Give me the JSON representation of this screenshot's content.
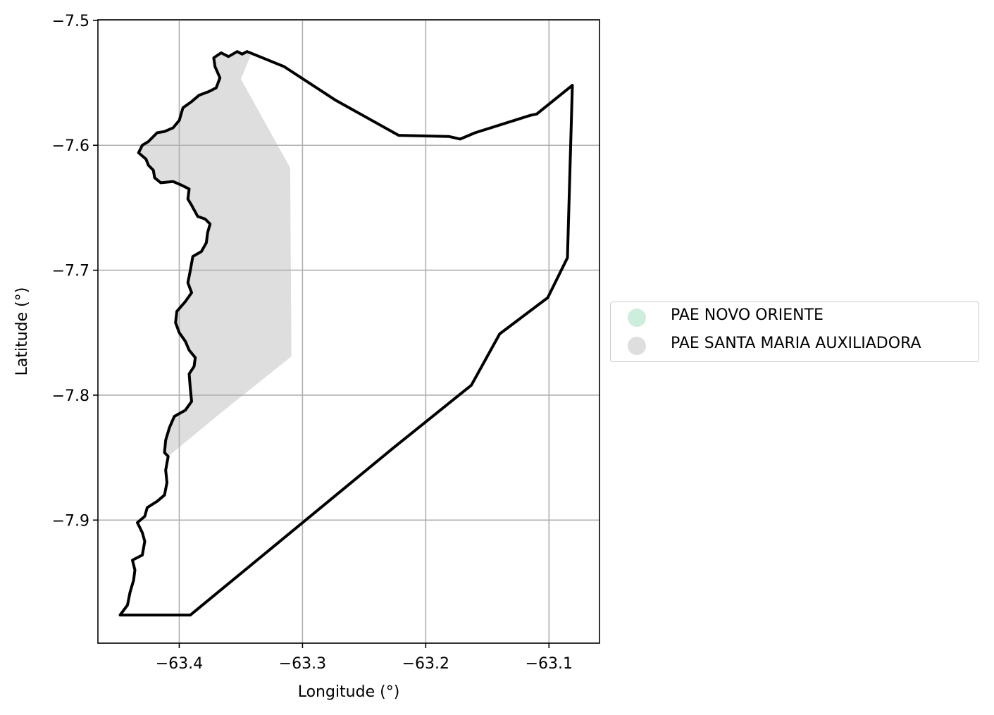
{
  "chart_data": {
    "type": "map",
    "xlabel": "Longitude (°)",
    "ylabel": "Latitude (°)",
    "xlim": [
      -63.466,
      -63.059
    ],
    "ylim": [
      -7.9985,
      -7.4995
    ],
    "x_ticks": [
      -63.4,
      -63.3,
      -63.2,
      -63.1
    ],
    "x_tick_labels": [
      "−63.4",
      "−63.3",
      "−63.2",
      "−63.1"
    ],
    "y_ticks": [
      -7.5,
      -7.6,
      -7.7,
      -7.8,
      -7.9
    ],
    "y_tick_labels": [
      "−7.5",
      "−7.6",
      "−7.7",
      "−7.8",
      "−7.9"
    ],
    "grid": true,
    "legend_position": "center-right outside",
    "legend": [
      {
        "label": "PAE NOVO ORIENTE",
        "color": "#cdeedd"
      },
      {
        "label": "PAE SANTA MARIA AUXILIADORA",
        "color": "#dedede"
      }
    ],
    "filled_region": {
      "name": "PAE SANTA MARIA AUXILIADORA",
      "color": "#dedede",
      "coords": [
        [
          -63.345,
          -7.525
        ],
        [
          -63.349,
          -7.527
        ],
        [
          -63.353,
          -7.525
        ],
        [
          -63.36,
          -7.529
        ],
        [
          -63.366,
          -7.526
        ],
        [
          -63.372,
          -7.53
        ],
        [
          -63.371,
          -7.537
        ],
        [
          -63.367,
          -7.546
        ],
        [
          -63.37,
          -7.554
        ],
        [
          -63.376,
          -7.557
        ],
        [
          -63.384,
          -7.56
        ],
        [
          -63.39,
          -7.565
        ],
        [
          -63.397,
          -7.57
        ],
        [
          -63.4,
          -7.58
        ],
        [
          -63.405,
          -7.586
        ],
        [
          -63.412,
          -7.589
        ],
        [
          -63.418,
          -7.59
        ],
        [
          -63.425,
          -7.597
        ],
        [
          -63.43,
          -7.6
        ],
        [
          -63.433,
          -7.606
        ],
        [
          -63.427,
          -7.611
        ],
        [
          -63.425,
          -7.616
        ],
        [
          -63.421,
          -7.62
        ],
        [
          -63.42,
          -7.626
        ],
        [
          -63.415,
          -7.63
        ],
        [
          -63.405,
          -7.629
        ],
        [
          -63.398,
          -7.632
        ],
        [
          -63.392,
          -7.635
        ],
        [
          -63.393,
          -7.643
        ],
        [
          -63.39,
          -7.648
        ],
        [
          -63.385,
          -7.657
        ],
        [
          -63.379,
          -7.659
        ],
        [
          -63.375,
          -7.663
        ],
        [
          -63.377,
          -7.67
        ],
        [
          -63.378,
          -7.678
        ],
        [
          -63.382,
          -7.685
        ],
        [
          -63.389,
          -7.689
        ],
        [
          -63.391,
          -7.7
        ],
        [
          -63.393,
          -7.71
        ],
        [
          -63.39,
          -7.718
        ],
        [
          -63.395,
          -7.725
        ],
        [
          -63.402,
          -7.733
        ],
        [
          -63.403,
          -7.742
        ],
        [
          -63.4,
          -7.75
        ],
        [
          -63.395,
          -7.757
        ],
        [
          -63.392,
          -7.764
        ],
        [
          -63.387,
          -7.77
        ],
        [
          -63.388,
          -7.777
        ],
        [
          -63.392,
          -7.783
        ],
        [
          -63.391,
          -7.795
        ],
        [
          -63.39,
          -7.805
        ],
        [
          -63.395,
          -7.812
        ],
        [
          -63.404,
          -7.817
        ],
        [
          -63.408,
          -7.826
        ],
        [
          -63.411,
          -7.836
        ],
        [
          -63.412,
          -7.846
        ],
        [
          -63.409,
          -7.849
        ],
        [
          -63.366,
          -7.814
        ],
        [
          -63.309,
          -7.769
        ],
        [
          -63.31,
          -7.618
        ],
        [
          -63.35,
          -7.547
        ],
        [
          -63.342,
          -7.528
        ]
      ]
    },
    "outline": {
      "color": "#000000",
      "coords": [
        [
          -63.345,
          -7.525
        ],
        [
          -63.315,
          -7.537
        ],
        [
          -63.273,
          -7.564
        ],
        [
          -63.222,
          -7.592
        ],
        [
          -63.181,
          -7.593
        ],
        [
          -63.172,
          -7.595
        ],
        [
          -63.16,
          -7.59
        ],
        [
          -63.115,
          -7.576
        ],
        [
          -63.11,
          -7.575
        ],
        [
          -63.081,
          -7.552
        ],
        [
          -63.085,
          -7.69
        ],
        [
          -63.101,
          -7.722
        ],
        [
          -63.14,
          -7.751
        ],
        [
          -63.163,
          -7.792
        ],
        [
          -63.226,
          -7.842
        ],
        [
          -63.391,
          -7.976
        ],
        [
          -63.448,
          -7.976
        ],
        [
          -63.442,
          -7.968
        ],
        [
          -63.44,
          -7.958
        ],
        [
          -63.437,
          -7.948
        ],
        [
          -63.436,
          -7.94
        ],
        [
          -63.438,
          -7.932
        ],
        [
          -63.43,
          -7.928
        ],
        [
          -63.428,
          -7.917
        ],
        [
          -63.43,
          -7.91
        ],
        [
          -63.434,
          -7.902
        ],
        [
          -63.428,
          -7.897
        ],
        [
          -63.426,
          -7.89
        ],
        [
          -63.418,
          -7.885
        ],
        [
          -63.412,
          -7.88
        ],
        [
          -63.41,
          -7.87
        ],
        [
          -63.411,
          -7.86
        ],
        [
          -63.409,
          -7.849
        ],
        [
          -63.412,
          -7.846
        ],
        [
          -63.411,
          -7.836
        ],
        [
          -63.408,
          -7.826
        ],
        [
          -63.404,
          -7.817
        ],
        [
          -63.395,
          -7.812
        ],
        [
          -63.39,
          -7.805
        ],
        [
          -63.391,
          -7.795
        ],
        [
          -63.392,
          -7.783
        ],
        [
          -63.388,
          -7.777
        ],
        [
          -63.387,
          -7.77
        ],
        [
          -63.392,
          -7.764
        ],
        [
          -63.395,
          -7.757
        ],
        [
          -63.4,
          -7.75
        ],
        [
          -63.403,
          -7.742
        ],
        [
          -63.402,
          -7.733
        ],
        [
          -63.395,
          -7.725
        ],
        [
          -63.39,
          -7.718
        ],
        [
          -63.393,
          -7.71
        ],
        [
          -63.391,
          -7.7
        ],
        [
          -63.389,
          -7.689
        ],
        [
          -63.382,
          -7.685
        ],
        [
          -63.378,
          -7.678
        ],
        [
          -63.377,
          -7.67
        ],
        [
          -63.375,
          -7.663
        ],
        [
          -63.379,
          -7.659
        ],
        [
          -63.385,
          -7.657
        ],
        [
          -63.39,
          -7.648
        ],
        [
          -63.393,
          -7.643
        ],
        [
          -63.392,
          -7.635
        ],
        [
          -63.398,
          -7.632
        ],
        [
          -63.405,
          -7.629
        ],
        [
          -63.415,
          -7.63
        ],
        [
          -63.42,
          -7.626
        ],
        [
          -63.421,
          -7.62
        ],
        [
          -63.425,
          -7.616
        ],
        [
          -63.427,
          -7.611
        ],
        [
          -63.433,
          -7.606
        ],
        [
          -63.43,
          -7.6
        ],
        [
          -63.425,
          -7.597
        ],
        [
          -63.418,
          -7.59
        ],
        [
          -63.412,
          -7.589
        ],
        [
          -63.405,
          -7.586
        ],
        [
          -63.4,
          -7.58
        ],
        [
          -63.397,
          -7.57
        ],
        [
          -63.39,
          -7.565
        ],
        [
          -63.384,
          -7.56
        ],
        [
          -63.376,
          -7.557
        ],
        [
          -63.37,
          -7.554
        ],
        [
          -63.367,
          -7.546
        ],
        [
          -63.371,
          -7.537
        ],
        [
          -63.372,
          -7.53
        ],
        [
          -63.366,
          -7.526
        ],
        [
          -63.36,
          -7.529
        ],
        [
          -63.353,
          -7.525
        ],
        [
          -63.349,
          -7.527
        ],
        [
          -63.345,
          -7.525
        ]
      ]
    }
  }
}
